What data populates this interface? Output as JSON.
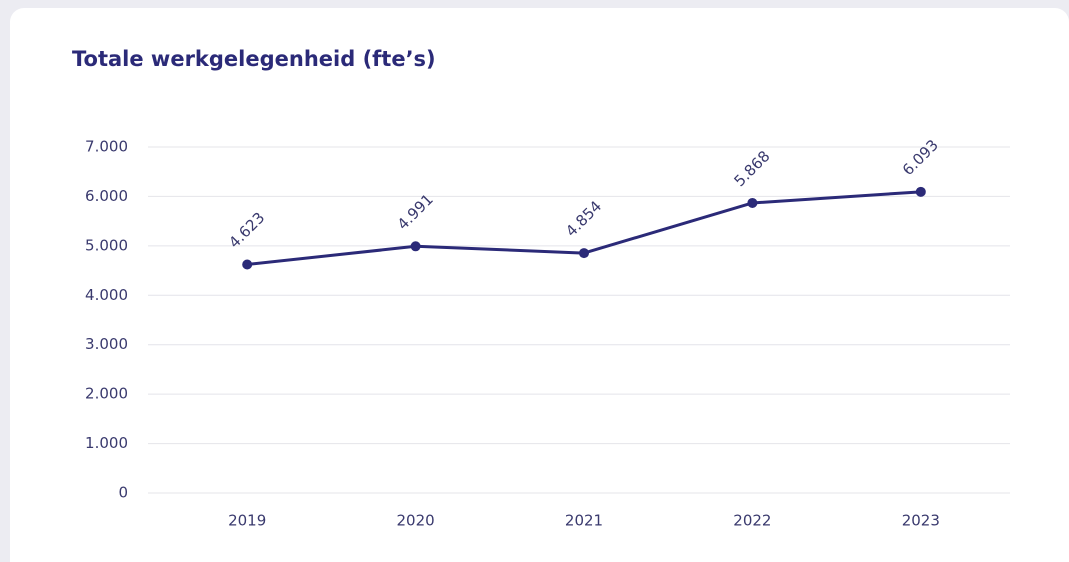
{
  "chart_data": {
    "type": "line",
    "title": "Totale werkgelegenheid (fte’s)",
    "categories": [
      "2019",
      "2020",
      "2021",
      "2022",
      "2023"
    ],
    "values": [
      4623,
      4991,
      4854,
      5868,
      6093
    ],
    "value_labels": [
      "4.623",
      "4.991",
      "4.854",
      "5.868",
      "6.093"
    ],
    "color": "#2b2a78",
    "ylim": [
      0,
      7000
    ],
    "yticks": [
      0,
      {
        "value": 1000,
        "label": "1.000"
      },
      {
        "value": 2000,
        "label": "2.000"
      },
      {
        "value": 3000,
        "label": "3.000"
      },
      {
        "value": 4000,
        "label": "4.000"
      },
      {
        "value": 5000,
        "label": "5.000"
      },
      {
        "value": 6000,
        "label": "6.000"
      },
      {
        "value": 7000,
        "label": "7.000"
      }
    ],
    "grid": true
  }
}
